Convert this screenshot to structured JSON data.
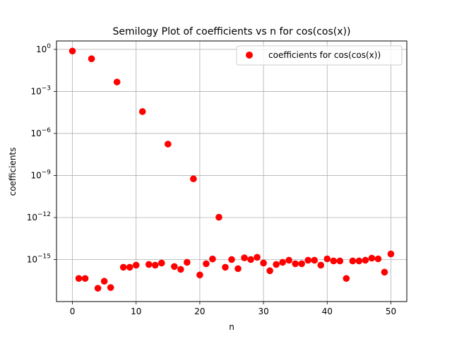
{
  "chart_data": {
    "type": "scatter",
    "title": "Semilogy Plot of coefficients vs n for cos(cos(x))",
    "xlabel": "n",
    "ylabel": "coefficients",
    "yscale": "log",
    "xlim": [
      -2.5,
      52.5
    ],
    "ylim_log10": [
      -18,
      0.6
    ],
    "x_ticks": [
      0,
      10,
      20,
      30,
      40,
      50
    ],
    "y_ticks": [
      {
        "value": 0,
        "base": "10",
        "exp": "0"
      },
      {
        "value": -3,
        "base": "10",
        "exp": "−3"
      },
      {
        "value": -6,
        "base": "10",
        "exp": "−6"
      },
      {
        "value": -9,
        "base": "10",
        "exp": "−9"
      },
      {
        "value": -12,
        "base": "10",
        "exp": "−12"
      },
      {
        "value": -15,
        "base": "10",
        "exp": "−15"
      }
    ],
    "grid": true,
    "legend_position": "top-right",
    "series": [
      {
        "name": "coefficients for cos(cos(x))",
        "color": "#ff0000",
        "marker": "circle",
        "x": [
          0,
          1,
          2,
          3,
          4,
          5,
          6,
          7,
          8,
          9,
          10,
          11,
          12,
          13,
          14,
          15,
          16,
          17,
          18,
          19,
          20,
          21,
          22,
          23,
          24,
          25,
          26,
          27,
          28,
          29,
          30,
          31,
          32,
          33,
          34,
          35,
          36,
          37,
          38,
          39,
          40,
          41,
          42,
          43,
          44,
          45,
          46,
          47,
          48,
          49,
          50
        ],
        "log10_y": [
          -0.12,
          -16.35,
          -16.35,
          -0.67,
          -17.05,
          -16.55,
          -17.0,
          -2.33,
          -15.55,
          -15.55,
          -15.4,
          -4.44,
          -15.35,
          -15.4,
          -15.25,
          -6.76,
          -15.5,
          -15.7,
          -15.2,
          -9.24,
          -16.1,
          -15.3,
          -14.96,
          -11.98,
          -15.55,
          -15.0,
          -15.65,
          -14.88,
          -15.0,
          -14.84,
          -15.25,
          -15.8,
          -15.35,
          -15.2,
          -15.05,
          -15.3,
          -15.3,
          -15.05,
          -15.05,
          -15.4,
          -14.95,
          -15.1,
          -15.1,
          -16.35,
          -15.1,
          -15.1,
          -15.05,
          -14.9,
          -14.95,
          -15.9,
          -14.6
        ]
      }
    ]
  }
}
